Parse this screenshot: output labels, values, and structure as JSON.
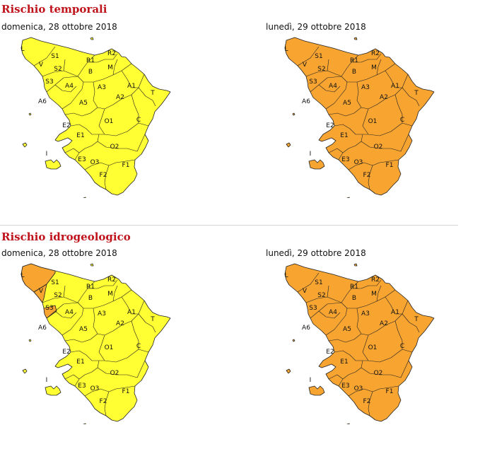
{
  "colors": {
    "title": "#c0141c",
    "low_risk": "#ffff33",
    "medium_risk": "#f7a431",
    "outline": "#222222"
  },
  "sections": [
    {
      "title": "Rischio temporali",
      "maps": [
        {
          "date": "domenica, 28 ottobre 2018",
          "fill": "yellow",
          "highlight_zones": []
        },
        {
          "date": "lunedì, 29 ottobre 2018",
          "fill": "orange",
          "highlight_zones": []
        }
      ]
    },
    {
      "title": "Rischio idrogeologico",
      "maps": [
        {
          "date": "domenica, 28 ottobre 2018",
          "fill": "yellow",
          "highlight_zones": [
            "L",
            "V",
            "S3"
          ]
        },
        {
          "date": "lunedì, 29 ottobre 2018",
          "fill": "orange",
          "highlight_zones": []
        }
      ]
    }
  ],
  "zones": [
    "L",
    "V",
    "S1",
    "S2",
    "S3",
    "R1",
    "R2",
    "M",
    "B",
    "A4",
    "A3",
    "A1",
    "T",
    "A6",
    "A5",
    "A2",
    "O1",
    "C",
    "E2",
    "E1",
    "O2",
    "I",
    "E3",
    "O3",
    "F1",
    "F2"
  ]
}
